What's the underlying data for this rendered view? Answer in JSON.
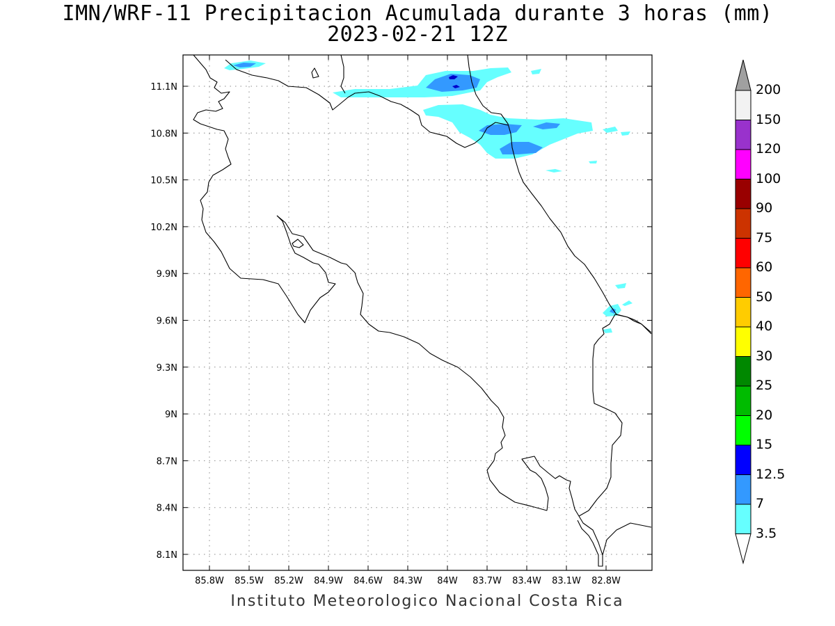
{
  "title_line1": "IMN/WRF-11 Precipitacion Acumulada durante 3 horas (mm)",
  "title_line2": "2023-02-21 12Z",
  "footer": "Instituto Meteorologico Nacional Costa Rica",
  "lat_ticks": [
    "11.1N",
    "10.8N",
    "10.5N",
    "10.2N",
    "9.9N",
    "9.6N",
    "9.3N",
    "9N",
    "8.7N",
    "8.4N",
    "8.1N"
  ],
  "lon_ticks": [
    "85.8W",
    "85.5W",
    "85.2W",
    "84.9W",
    "84.6W",
    "84.3W",
    "84W",
    "83.7W",
    "83.4W",
    "83.1W",
    "82.8W"
  ],
  "colorbar": {
    "labels": [
      "200",
      "150",
      "120",
      "100",
      "90",
      "75",
      "60",
      "50",
      "40",
      "30",
      "25",
      "20",
      "15",
      "12.5",
      "7",
      "3.5"
    ],
    "colors": [
      "#a0a0a0",
      "#f2f2f2",
      "#9932cc",
      "#ff00ff",
      "#990000",
      "#cc3300",
      "#ff0000",
      "#ff6600",
      "#ffcc00",
      "#ffff00",
      "#008800",
      "#00bb00",
      "#00ff00",
      "#0000ff",
      "#3399ff",
      "#66ffff"
    ]
  },
  "precip_colors": {
    "light": "#66ffff",
    "medium": "#3399ff",
    "heavy": "#0000cc"
  }
}
